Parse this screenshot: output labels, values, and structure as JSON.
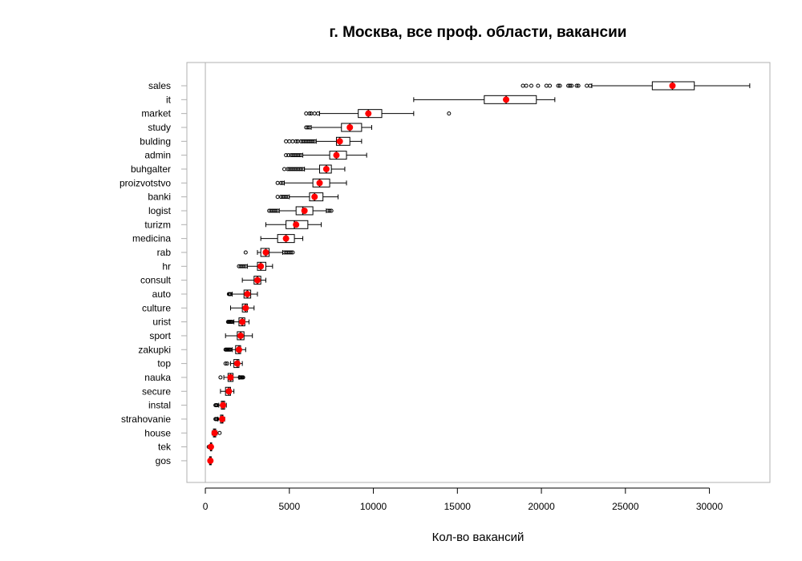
{
  "chart_data": {
    "type": "boxplot",
    "title": "г. Москва, все проф. области, вакансии",
    "xlabel": "Кол-во вакансий",
    "ylabel": "",
    "xlim": [
      -1100,
      33600
    ],
    "xticks": [
      0,
      5000,
      10000,
      15000,
      20000,
      25000,
      30000
    ],
    "orientation": "horizontal",
    "mean_color": "#ff0000",
    "series": [
      {
        "name": "sales",
        "whisker_low": 23000,
        "q1": 26600,
        "median": 27800,
        "q3": 29100,
        "whisker_high": 32400,
        "mean": 27800,
        "outliers": [
          18900,
          19100,
          19400,
          19800,
          20300,
          20500,
          21000,
          21100,
          21600,
          21700,
          21800,
          22100,
          22200,
          22700,
          22900
        ]
      },
      {
        "name": "it",
        "whisker_low": 12400,
        "q1": 16600,
        "median": 17900,
        "q3": 19700,
        "whisker_high": 20800,
        "mean": 17900,
        "outliers": []
      },
      {
        "name": "market",
        "whisker_low": 6800,
        "q1": 9100,
        "median": 9700,
        "q3": 10500,
        "whisker_high": 12400,
        "mean": 9700,
        "outliers": [
          6000,
          6200,
          6300,
          6500,
          6700,
          14500
        ]
      },
      {
        "name": "study",
        "whisker_low": 6300,
        "q1": 8100,
        "median": 8600,
        "q3": 9300,
        "whisker_high": 9900,
        "mean": 8600,
        "outliers": [
          6000,
          6100,
          6200
        ]
      },
      {
        "name": "bulding",
        "whisker_low": 6600,
        "q1": 7800,
        "median": 8000,
        "q3": 8600,
        "whisker_high": 9300,
        "mean": 8000,
        "outliers": [
          4800,
          5000,
          5200,
          5400,
          5500,
          5700,
          5800,
          5900,
          6000,
          6100,
          6200,
          6300,
          6400,
          6500
        ]
      },
      {
        "name": "admin",
        "whisker_low": 5800,
        "q1": 7400,
        "median": 7800,
        "q3": 8400,
        "whisker_high": 9600,
        "mean": 7800,
        "outliers": [
          4800,
          4950,
          5100,
          5200,
          5300,
          5400,
          5500,
          5600,
          5700
        ]
      },
      {
        "name": "buhgalter",
        "whisker_low": 5900,
        "q1": 6800,
        "median": 7200,
        "q3": 7500,
        "whisker_high": 8300,
        "mean": 7200,
        "outliers": [
          4700,
          4900,
          5000,
          5100,
          5200,
          5300,
          5400,
          5500,
          5600,
          5700,
          5800
        ]
      },
      {
        "name": "proizvotstvo",
        "whisker_low": 4700,
        "q1": 6400,
        "median": 6800,
        "q3": 7400,
        "whisker_high": 8400,
        "mean": 6800,
        "outliers": [
          4300,
          4500,
          4600
        ]
      },
      {
        "name": "banki",
        "whisker_low": 5000,
        "q1": 6200,
        "median": 6500,
        "q3": 7000,
        "whisker_high": 7900,
        "mean": 6500,
        "outliers": [
          4300,
          4500,
          4600,
          4700,
          4800,
          4900
        ]
      },
      {
        "name": "logist",
        "whisker_low": 4400,
        "q1": 5400,
        "median": 5800,
        "q3": 6400,
        "whisker_high": 7200,
        "mean": 5900,
        "outliers": [
          3800,
          3900,
          4000,
          4100,
          4200,
          4300,
          7300,
          7400,
          7500
        ]
      },
      {
        "name": "turizm",
        "whisker_low": 3600,
        "q1": 4800,
        "median": 5300,
        "q3": 6100,
        "whisker_high": 6900,
        "mean": 5400,
        "outliers": []
      },
      {
        "name": "medicina",
        "whisker_low": 3300,
        "q1": 4300,
        "median": 4800,
        "q3": 5300,
        "whisker_high": 5800,
        "mean": 4800,
        "outliers": []
      },
      {
        "name": "rab",
        "whisker_low": 3100,
        "q1": 3300,
        "median": 3600,
        "q3": 3800,
        "whisker_high": 4600,
        "mean": 3600,
        "outliers": [
          2400,
          4700,
          4800,
          4900,
          5000,
          5100,
          5200
        ]
      },
      {
        "name": "hr",
        "whisker_low": 2500,
        "q1": 3100,
        "median": 3300,
        "q3": 3600,
        "whisker_high": 4000,
        "mean": 3300,
        "outliers": [
          2000,
          2100,
          2200,
          2300,
          2400
        ]
      },
      {
        "name": "consult",
        "whisker_low": 2200,
        "q1": 2900,
        "median": 3100,
        "q3": 3300,
        "whisker_high": 3600,
        "mean": 3100,
        "outliers": []
      },
      {
        "name": "auto",
        "whisker_low": 1600,
        "q1": 2300,
        "median": 2500,
        "q3": 2700,
        "whisker_high": 3100,
        "mean": 2500,
        "outliers": [
          1400,
          1450,
          1500
        ]
      },
      {
        "name": "culture",
        "whisker_low": 1500,
        "q1": 2200,
        "median": 2400,
        "q3": 2500,
        "whisker_high": 2900,
        "mean": 2400,
        "outliers": []
      },
      {
        "name": "urist",
        "whisker_low": 1700,
        "q1": 2000,
        "median": 2200,
        "q3": 2350,
        "whisker_high": 2600,
        "mean": 2200,
        "outliers": [
          1350,
          1400,
          1450,
          1500,
          1550,
          1600
        ]
      },
      {
        "name": "sport",
        "whisker_low": 1200,
        "q1": 1900,
        "median": 2100,
        "q3": 2300,
        "whisker_high": 2800,
        "mean": 2100,
        "outliers": []
      },
      {
        "name": "zakupki",
        "whisker_low": 1600,
        "q1": 1800,
        "median": 2000,
        "q3": 2100,
        "whisker_high": 2400,
        "mean": 2000,
        "outliers": [
          1200,
          1250,
          1300,
          1350,
          1400,
          1450,
          1500
        ]
      },
      {
        "name": "top",
        "whisker_low": 1500,
        "q1": 1700,
        "median": 1900,
        "q3": 2000,
        "whisker_high": 2200,
        "mean": 1900,
        "outliers": [
          1200,
          1300
        ]
      },
      {
        "name": "nauka",
        "whisker_low": 1100,
        "q1": 1350,
        "median": 1500,
        "q3": 1650,
        "whisker_high": 2000,
        "mean": 1500,
        "outliers": [
          900,
          2050,
          2100,
          2150,
          2200,
          2250
        ]
      },
      {
        "name": "secure",
        "whisker_low": 900,
        "q1": 1200,
        "median": 1400,
        "q3": 1500,
        "whisker_high": 1700,
        "mean": 1400,
        "outliers": []
      },
      {
        "name": "instal",
        "whisker_low": 800,
        "q1": 950,
        "median": 1050,
        "q3": 1150,
        "whisker_high": 1250,
        "mean": 1050,
        "outliers": [
          600,
          650,
          700
        ]
      },
      {
        "name": "strahovanie",
        "whisker_low": 750,
        "q1": 900,
        "median": 1000,
        "q3": 1050,
        "whisker_high": 1150,
        "mean": 1000,
        "outliers": [
          600,
          650,
          700
        ]
      },
      {
        "name": "house",
        "whisker_low": 400,
        "q1": 480,
        "median": 550,
        "q3": 620,
        "whisker_high": 700,
        "mean": 550,
        "outliers": [
          850
        ]
      },
      {
        "name": "tek",
        "whisker_low": 250,
        "q1": 300,
        "median": 330,
        "q3": 380,
        "whisker_high": 430,
        "mean": 330,
        "outliers": [
          200
        ]
      },
      {
        "name": "gos",
        "whisker_low": 200,
        "q1": 250,
        "median": 300,
        "q3": 350,
        "whisker_high": 400,
        "mean": 300,
        "outliers": []
      }
    ]
  }
}
